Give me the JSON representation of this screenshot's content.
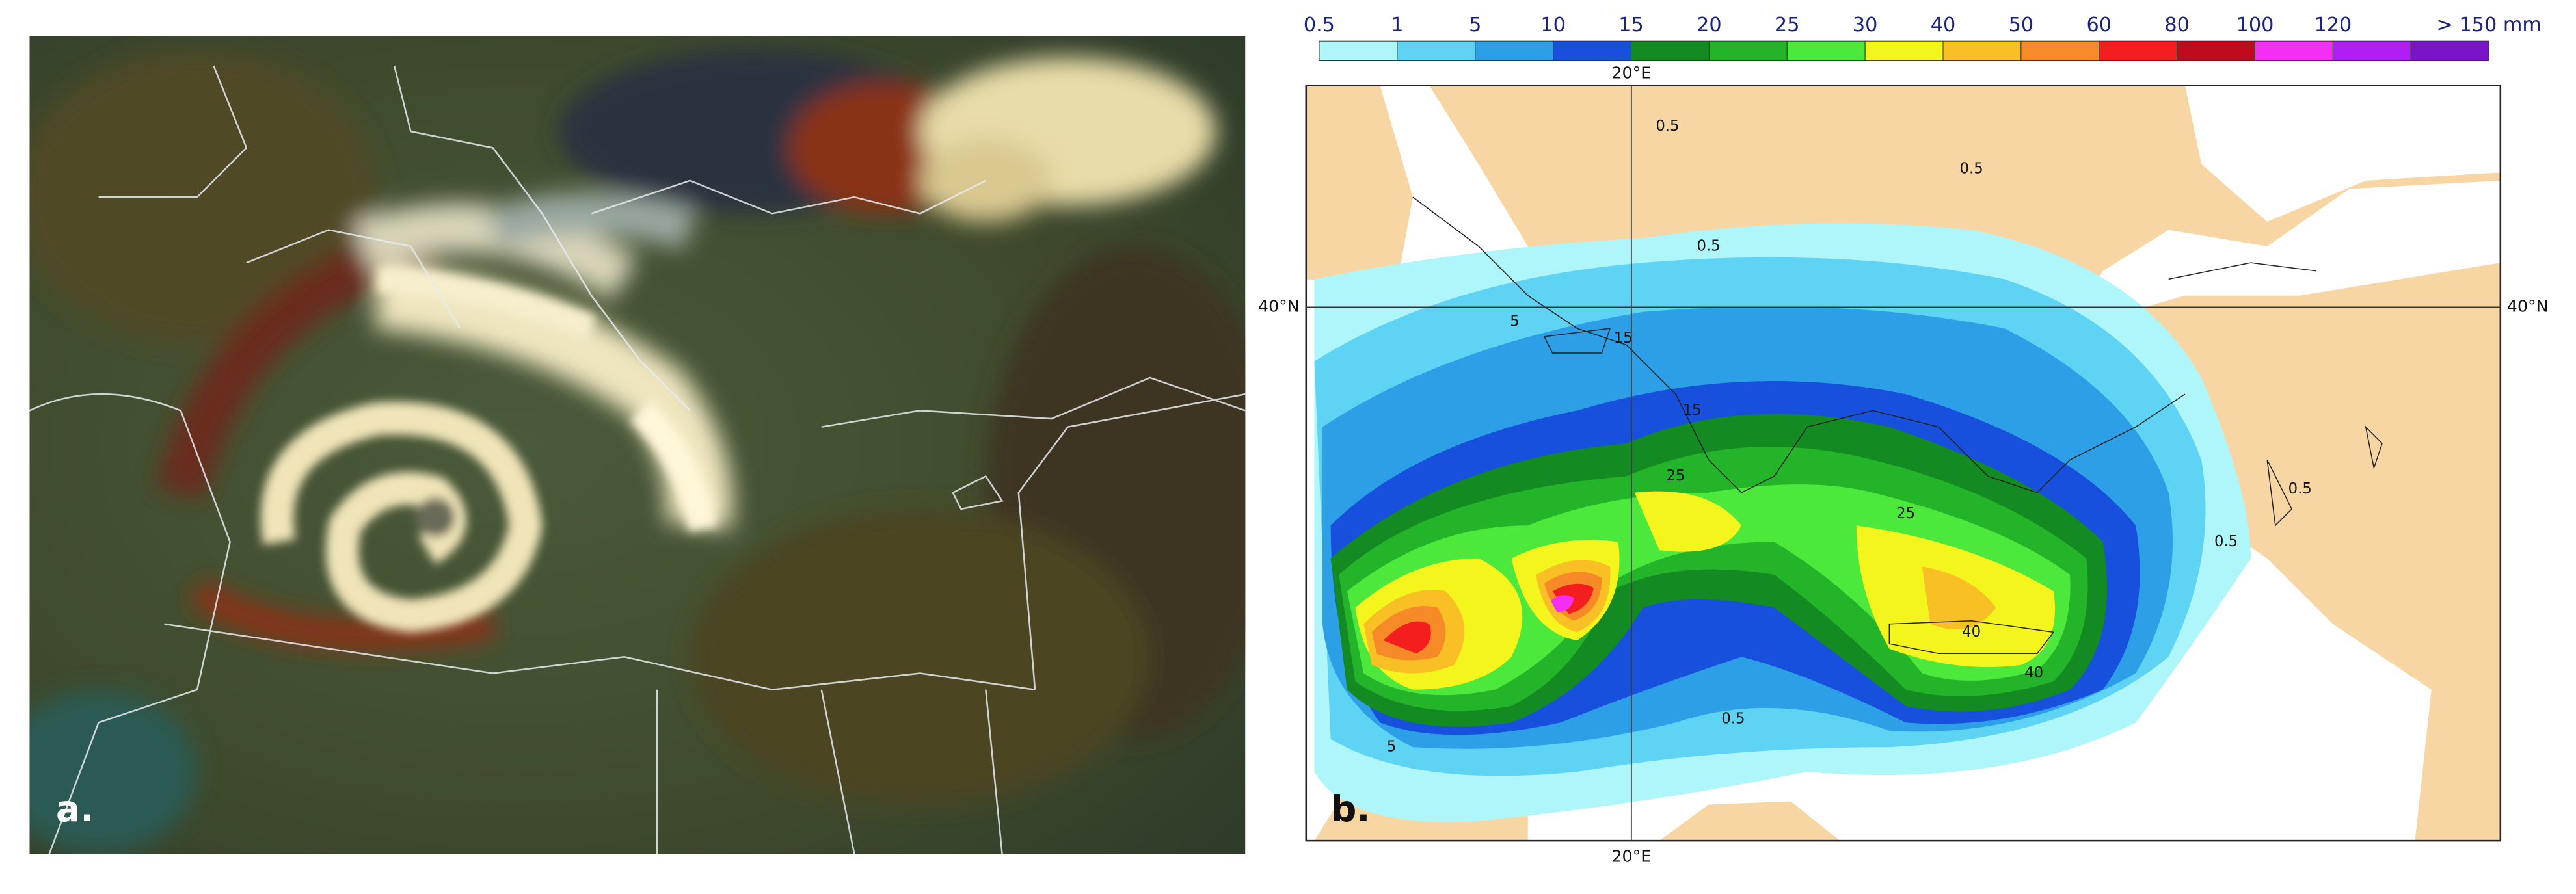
{
  "panel_a": {
    "label": "a."
  },
  "panel_b": {
    "label": "b.",
    "legend": {
      "labels": [
        "0.5",
        "1",
        "5",
        "10",
        "15",
        "20",
        "25",
        "30",
        "40",
        "50",
        "60",
        "80",
        "100",
        "120",
        "> 150 mm"
      ],
      "colors": [
        "#aef6fa",
        "#5ed3f4",
        "#2c9fe6",
        "#1750dd",
        "#148a22",
        "#24b42a",
        "#4de83c",
        "#f5f51e",
        "#f8c024",
        "#f58a26",
        "#f51e1e",
        "#c00a1e",
        "#f52ef5",
        "#b01ef5",
        "#7a14c8"
      ]
    },
    "axes": {
      "lon_top": "20°E",
      "lon_bottom": "20°E",
      "lat_left": "40°N",
      "lat_right": "40°N"
    },
    "contour_labels": [
      "0.5",
      "0.5",
      "0.5",
      "5",
      "15",
      "15",
      "25",
      "25",
      "40",
      "40",
      "0.5",
      "0.5",
      "0.5",
      "5"
    ]
  }
}
